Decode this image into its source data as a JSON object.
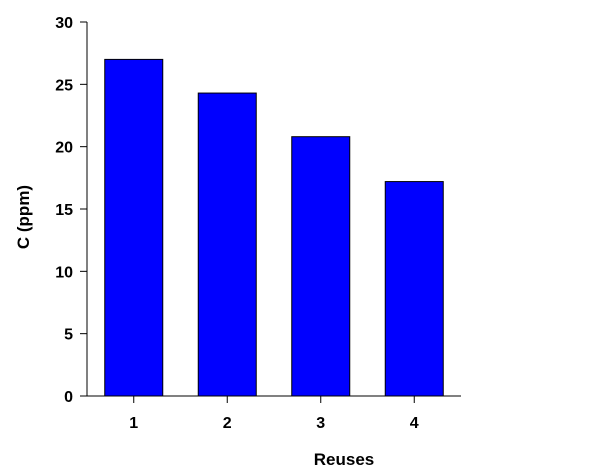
{
  "chart_data": {
    "type": "bar",
    "title": "",
    "xlabel": "Reuses",
    "ylabel": "C (ppm)",
    "categories": [
      "1",
      "2",
      "3",
      "4"
    ],
    "values": [
      27.0,
      24.3,
      20.8,
      17.2
    ],
    "ylim": [
      0,
      30
    ],
    "yticks": [
      "0",
      "5",
      "10",
      "15",
      "20",
      "25",
      "30"
    ],
    "grid": false,
    "legend": "none",
    "colors": {
      "bar_fill": "#0000ff",
      "bar_stroke": "#000000",
      "axis": "#000000"
    }
  }
}
